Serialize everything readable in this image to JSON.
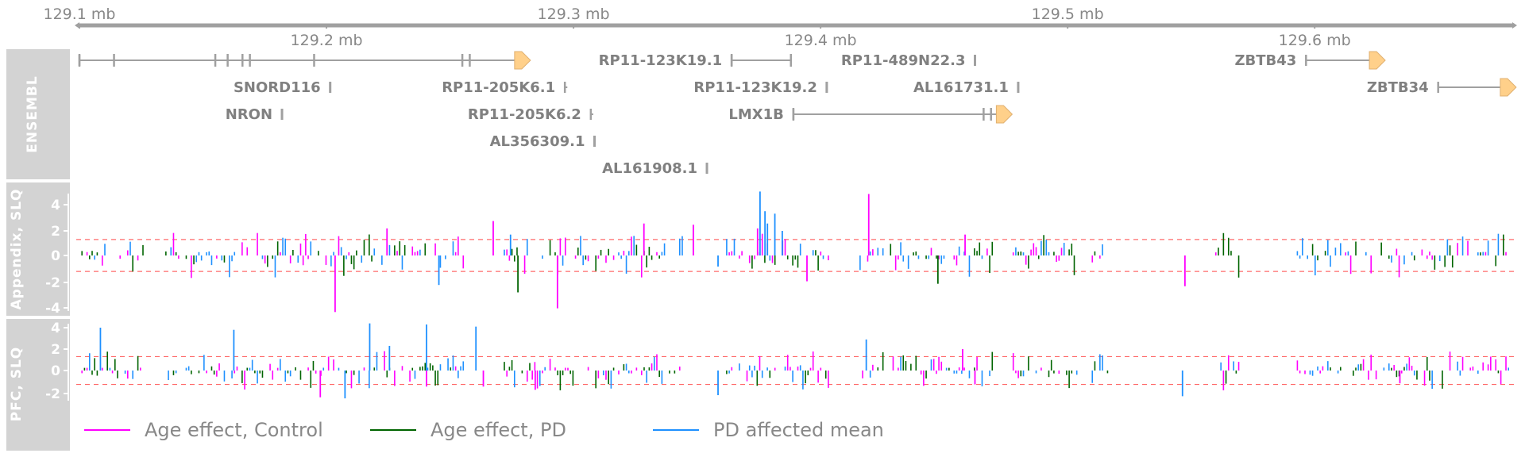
{
  "chart_data": {
    "type": "genome-track",
    "axis": {
      "range_mb": [
        129.1,
        129.68
      ],
      "ticks_top": [
        "129.1 mb",
        "129.3 mb",
        "129.5 mb"
      ],
      "ticks_bottom": [
        "129.2 mb",
        "129.4 mb",
        "129.6 mb"
      ]
    },
    "ensembl": {
      "title": "ENSEMBL",
      "genes": [
        {
          "name": "",
          "start": 129.1,
          "end": 129.28,
          "row": 0,
          "strand": "+",
          "exons": [
            129.1,
            129.114,
            129.155,
            129.16,
            129.166,
            129.169,
            129.195,
            129.255,
            129.258
          ]
        },
        {
          "name": "SNORD116",
          "start": 129.2015,
          "end": 129.2015,
          "row": 1
        },
        {
          "name": "NRON",
          "start": 129.182,
          "end": 129.182,
          "row": 2
        },
        {
          "name": "RP11-205K6.1",
          "start": 129.2965,
          "end": 129.2975,
          "row": 1
        },
        {
          "name": "RP11-205K6.2",
          "start": 129.307,
          "end": 129.308,
          "row": 2
        },
        {
          "name": "AL356309.1",
          "start": 129.3085,
          "end": 129.3085,
          "row": 3
        },
        {
          "name": "AL161908.1",
          "start": 129.354,
          "end": 129.354,
          "row": 4
        },
        {
          "name": "RP11-123K19.1",
          "start": 129.364,
          "end": 129.388,
          "row": 0,
          "exons": [
            129.364,
            129.388
          ]
        },
        {
          "name": "RP11-123K19.2",
          "start": 129.4025,
          "end": 129.4025,
          "row": 1
        },
        {
          "name": "LMX1B",
          "start": 129.389,
          "end": 129.475,
          "row": 2,
          "strand": "+",
          "exons": [
            129.389,
            129.466,
            129.469,
            129.472
          ]
        },
        {
          "name": "RP11-489N22.3",
          "start": 129.4625,
          "end": 129.4625,
          "row": 0
        },
        {
          "name": "AL161731.1",
          "start": 129.48,
          "end": 129.48,
          "row": 1
        },
        {
          "name": "ZBTB43",
          "start": 129.5965,
          "end": 129.626,
          "row": 0,
          "strand": "+"
        },
        {
          "name": "ZBTB34",
          "start": 129.65,
          "end": 129.679,
          "row": 1,
          "strand": "+"
        }
      ]
    },
    "tracks": [
      {
        "title": "Appendix, SLQ",
        "yticks": [
          "4",
          "2",
          "0",
          "-2",
          "-4"
        ],
        "ylim": [
          -5,
          6
        ],
        "threshold": 1.3,
        "seed": 17,
        "peaks": [
          {
            "x": 129.2035,
            "series": 0,
            "y": -4.6
          },
          {
            "x": 129.2245,
            "series": 0,
            "y": 2.2
          },
          {
            "x": 129.2455,
            "series": 2,
            "y": -2.4
          },
          {
            "x": 129.2675,
            "series": 0,
            "y": 2.8
          },
          {
            "x": 129.2775,
            "series": 1,
            "y": -3.0
          },
          {
            "x": 129.2745,
            "series": 2,
            "y": 1.7
          },
          {
            "x": 129.2935,
            "series": 0,
            "y": -4.3
          },
          {
            "x": 129.3285,
            "series": 0,
            "y": 2.6
          },
          {
            "x": 129.3485,
            "series": 0,
            "y": 2.5
          },
          {
            "x": 129.3755,
            "series": 2,
            "y": 5.2
          },
          {
            "x": 129.3745,
            "series": 0,
            "y": 2.2
          },
          {
            "x": 129.3775,
            "series": 2,
            "y": 3.6
          },
          {
            "x": 129.3815,
            "series": 2,
            "y": 3.4
          },
          {
            "x": 129.3785,
            "series": 2,
            "y": 2.6
          },
          {
            "x": 129.3845,
            "series": 2,
            "y": 2.0
          },
          {
            "x": 129.3945,
            "series": 0,
            "y": -2.1
          },
          {
            "x": 129.4195,
            "series": 0,
            "y": 5.0
          },
          {
            "x": 129.4475,
            "series": 1,
            "y": -2.3
          },
          {
            "x": 129.4585,
            "series": 0,
            "y": 1.7
          },
          {
            "x": 129.5475,
            "series": 0,
            "y": -2.5
          },
          {
            "x": 129.3585,
            "series": 2,
            "y": -0.9
          }
        ]
      },
      {
        "title": "PFC, SLQ",
        "yticks": [
          "4",
          "2",
          "0",
          "-2"
        ],
        "ylim": [
          -3.2,
          4.8
        ],
        "threshold": 1.3,
        "seed": 91,
        "peaks": [
          {
            "x": 129.1085,
            "series": 2,
            "y": 4.0
          },
          {
            "x": 129.1625,
            "series": 2,
            "y": 3.8
          },
          {
            "x": 129.1975,
            "series": 0,
            "y": -2.5
          },
          {
            "x": 129.2075,
            "series": 2,
            "y": -2.6
          },
          {
            "x": 129.2175,
            "series": 2,
            "y": 4.4
          },
          {
            "x": 129.2255,
            "series": 2,
            "y": 2.3
          },
          {
            "x": 129.2405,
            "series": 2,
            "y": 4.3
          },
          {
            "x": 129.2405,
            "series": 0,
            "y": -1.5
          },
          {
            "x": 129.2605,
            "series": 2,
            "y": 4.1
          },
          {
            "x": 129.2635,
            "series": 0,
            "y": -1.5
          },
          {
            "x": 129.2845,
            "series": 0,
            "y": -1.8
          },
          {
            "x": 129.3585,
            "series": 2,
            "y": -2.3
          },
          {
            "x": 129.4185,
            "series": 2,
            "y": 2.9
          },
          {
            "x": 129.4575,
            "series": 0,
            "y": 2.0
          },
          {
            "x": 129.4625,
            "series": 0,
            "y": -1.3
          },
          {
            "x": 129.5465,
            "series": 2,
            "y": -2.4
          },
          {
            "x": 129.6345,
            "series": 0,
            "y": -1.2
          }
        ]
      }
    ],
    "regions": [
      [
        129.1,
        129.126
      ],
      [
        129.135,
        129.256
      ],
      [
        129.272,
        129.345
      ],
      [
        129.362,
        129.405
      ],
      [
        129.416,
        129.47
      ],
      [
        129.478,
        129.504
      ],
      [
        129.51,
        129.517
      ],
      [
        129.56,
        129.57
      ],
      [
        129.593,
        129.625
      ],
      [
        129.627,
        129.66
      ],
      [
        129.662,
        129.679
      ]
    ],
    "legend": [
      {
        "name": "Age effect, Control",
        "color": "#ff00ff"
      },
      {
        "name": "Age effect, PD",
        "color": "#006400"
      },
      {
        "name": "PD affected mean",
        "color": "#1e90ff"
      }
    ],
    "colors": {
      "track_bg": "#d3d3d3",
      "axis": "#a0a0a0",
      "gene": "#a0a0a0",
      "arrow_fill": "#ffd08a",
      "threshold": "#ff6b6b"
    }
  }
}
